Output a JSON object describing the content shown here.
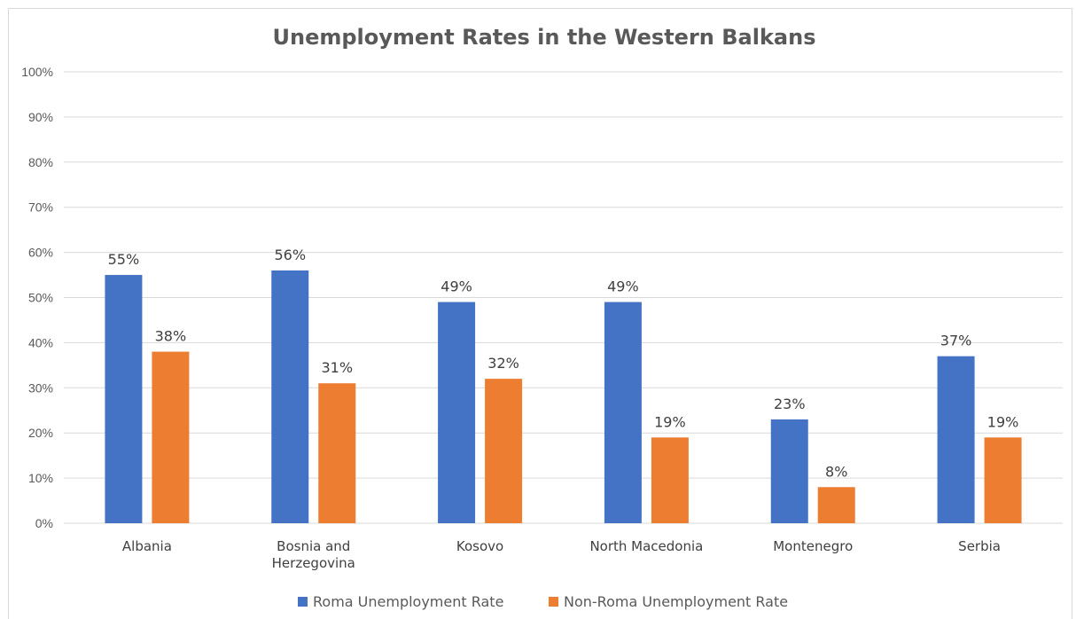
{
  "chart_data": {
    "type": "bar",
    "title": "Unemployment Rates in the Western Balkans",
    "xlabel": "",
    "ylabel": "",
    "categories": [
      "Albania",
      "Bosnia and Herzegovina",
      "Kosovo",
      "North Macedonia",
      "Montenegro",
      "Serbia"
    ],
    "series": [
      {
        "name": "Roma Unemployment Rate",
        "values": [
          55,
          56,
          49,
          49,
          23,
          37
        ],
        "color": "#4472C4"
      },
      {
        "name": "Non-Roma Unemployment Rate",
        "values": [
          38,
          31,
          32,
          19,
          8,
          19
        ],
        "color": "#ED7D31"
      }
    ],
    "ylim": [
      0,
      100
    ],
    "yticks": [
      0,
      10,
      20,
      30,
      40,
      50,
      60,
      70,
      80,
      90,
      100
    ],
    "ytick_labels": [
      "0%",
      "10%",
      "20%",
      "30%",
      "40%",
      "50%",
      "60%",
      "70%",
      "80%",
      "90%",
      "100%"
    ],
    "category_lines": [
      [
        "Albania"
      ],
      [
        "Bosnia and",
        "Herzegovina"
      ],
      [
        "Kosovo"
      ],
      [
        "North Macedonia"
      ],
      [
        "Montenegro"
      ],
      [
        "Serbia"
      ]
    ],
    "data_labels": [
      [
        "55%",
        "56%",
        "49%",
        "49%",
        "23%",
        "37%"
      ],
      [
        "38%",
        "31%",
        "32%",
        "19%",
        "8%",
        "19%"
      ]
    ],
    "grid": true,
    "legend_position": "bottom"
  }
}
